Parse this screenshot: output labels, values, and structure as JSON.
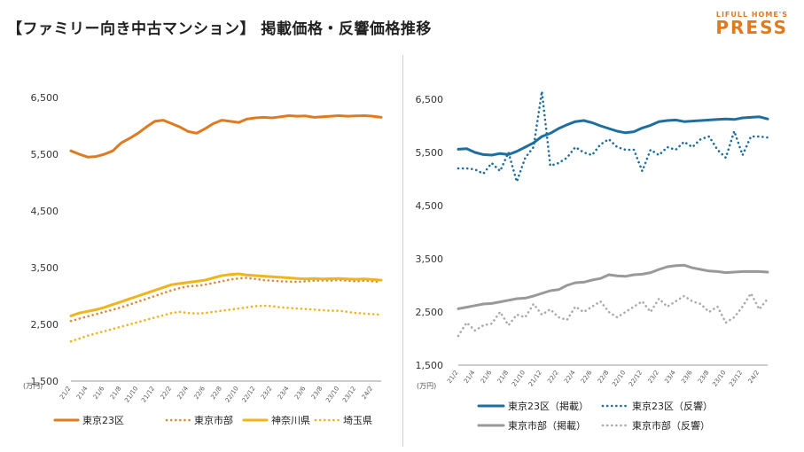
{
  "header": {
    "title": "【ファミリー向き中古マンション】 掲載価格・反響価格推移",
    "logo_small": "LIFULL HOME'S",
    "logo_big": "PRESS"
  },
  "chart_data": [
    {
      "type": "line",
      "title": "",
      "ylabel": "",
      "unit_label": "(万円)",
      "ylim": [
        1500,
        6500
      ],
      "yticks": [
        1500,
        2500,
        3500,
        4500,
        5500,
        6500
      ],
      "ytick_labels": [
        "1,500",
        "2,500",
        "3,500",
        "4,500",
        "5,500",
        "6,500"
      ],
      "categories": [
        "21/2",
        "21/3",
        "21/4",
        "21/5",
        "21/6",
        "21/7",
        "21/8",
        "21/9",
        "21/10",
        "21/11",
        "21/12",
        "22/1",
        "22/2",
        "22/3",
        "22/4",
        "22/5",
        "22/6",
        "22/7",
        "22/8",
        "22/9",
        "22/10",
        "22/11",
        "22/12",
        "23/1",
        "23/2",
        "23/3",
        "23/4",
        "23/5",
        "23/6",
        "23/7",
        "23/8",
        "23/9",
        "23/10",
        "23/11",
        "23/12",
        "24/1",
        "24/2",
        "24/3"
      ],
      "tick_labels": [
        "21/2",
        "21/4",
        "21/6",
        "21/8",
        "21/10",
        "21/12",
        "22/2",
        "22/4",
        "22/6",
        "22/8",
        "22/10",
        "22/12",
        "23/2",
        "23/4",
        "23/6",
        "23/8",
        "23/10",
        "23/12",
        "24/2"
      ],
      "series": [
        {
          "name": "東京23区",
          "color": "#e07a1f",
          "style": "solid",
          "values": [
            5560,
            5500,
            5450,
            5460,
            5500,
            5560,
            5700,
            5780,
            5870,
            5980,
            6080,
            6100,
            6040,
            5980,
            5900,
            5870,
            5950,
            6040,
            6100,
            6080,
            6060,
            6120,
            6140,
            6150,
            6140,
            6160,
            6180,
            6170,
            6175,
            6150,
            6160,
            6170,
            6180,
            6170,
            6175,
            6180,
            6170,
            6150
          ]
        },
        {
          "name": "東京市部",
          "color": "#d98a3d",
          "style": "dot",
          "values": [
            2560,
            2600,
            2640,
            2680,
            2720,
            2760,
            2800,
            2850,
            2900,
            2950,
            3000,
            3050,
            3100,
            3140,
            3170,
            3180,
            3200,
            3230,
            3260,
            3290,
            3310,
            3320,
            3300,
            3280,
            3270,
            3260,
            3255,
            3250,
            3260,
            3270,
            3275,
            3270,
            3280,
            3270,
            3260,
            3270,
            3260,
            3250
          ]
        },
        {
          "name": "神奈川県",
          "color": "#f0b41c",
          "style": "solid",
          "values": [
            2650,
            2700,
            2730,
            2760,
            2800,
            2850,
            2900,
            2950,
            3000,
            3050,
            3100,
            3150,
            3200,
            3220,
            3240,
            3260,
            3280,
            3320,
            3360,
            3380,
            3390,
            3370,
            3360,
            3350,
            3340,
            3330,
            3320,
            3310,
            3300,
            3310,
            3300,
            3305,
            3310,
            3300,
            3295,
            3300,
            3290,
            3280
          ]
        },
        {
          "name": "埼玉県",
          "color": "#f0b41c",
          "style": "dot",
          "values": [
            2200,
            2250,
            2300,
            2340,
            2380,
            2420,
            2460,
            2500,
            2540,
            2580,
            2620,
            2660,
            2700,
            2720,
            2700,
            2690,
            2700,
            2720,
            2740,
            2760,
            2780,
            2800,
            2820,
            2830,
            2820,
            2800,
            2790,
            2780,
            2770,
            2760,
            2750,
            2740,
            2740,
            2720,
            2700,
            2690,
            2680,
            2670
          ]
        }
      ],
      "legend": [
        "東京23区",
        "東京市部",
        "神奈川県",
        "埼玉県"
      ]
    },
    {
      "type": "line",
      "title": "",
      "ylabel": "",
      "unit_label": "(万円)",
      "ylim": [
        1500,
        6500
      ],
      "yticks": [
        1500,
        2500,
        3500,
        4500,
        5500,
        6500
      ],
      "ytick_labels": [
        "1,500",
        "2,500",
        "3,500",
        "4,500",
        "5,500",
        "6,500"
      ],
      "categories": [
        "21/2",
        "21/3",
        "21/4",
        "21/5",
        "21/6",
        "21/7",
        "21/8",
        "21/9",
        "21/10",
        "21/11",
        "21/12",
        "22/1",
        "22/2",
        "22/3",
        "22/4",
        "22/5",
        "22/6",
        "22/7",
        "22/8",
        "22/9",
        "22/10",
        "22/11",
        "22/12",
        "23/1",
        "23/2",
        "23/3",
        "23/4",
        "23/5",
        "23/6",
        "23/7",
        "23/8",
        "23/9",
        "23/10",
        "23/11",
        "23/12",
        "24/1",
        "24/2",
        "24/3"
      ],
      "tick_labels": [
        "21/2",
        "21/4",
        "21/6",
        "21/8",
        "21/10",
        "21/12",
        "22/2",
        "22/4",
        "22/6",
        "22/8",
        "22/10",
        "22/12",
        "23/2",
        "23/4",
        "23/6",
        "23/8",
        "23/10",
        "23/12",
        "24/2"
      ],
      "series": [
        {
          "name": "東京23区（掲載）",
          "color": "#1f6f9e",
          "style": "solid",
          "values": [
            5560,
            5570,
            5500,
            5460,
            5450,
            5480,
            5460,
            5520,
            5600,
            5680,
            5800,
            5860,
            5950,
            6020,
            6080,
            6100,
            6060,
            6000,
            5950,
            5900,
            5870,
            5890,
            5960,
            6010,
            6080,
            6100,
            6110,
            6080,
            6090,
            6100,
            6110,
            6120,
            6130,
            6120,
            6150,
            6160,
            6170,
            6130
          ]
        },
        {
          "name": "東京23区（反響）",
          "color": "#1f6f9e",
          "style": "dot",
          "values": [
            5200,
            5200,
            5180,
            5100,
            5300,
            5150,
            5500,
            4950,
            5400,
            5600,
            6650,
            5250,
            5300,
            5400,
            5600,
            5500,
            5450,
            5650,
            5750,
            5600,
            5550,
            5550,
            5150,
            5550,
            5450,
            5600,
            5550,
            5700,
            5600,
            5750,
            5800,
            5550,
            5400,
            5900,
            5450,
            5800,
            5800,
            5780
          ]
        },
        {
          "name": "東京市部（掲載）",
          "color": "#999999",
          "style": "solid",
          "values": [
            2560,
            2590,
            2620,
            2650,
            2660,
            2690,
            2720,
            2750,
            2760,
            2800,
            2850,
            2900,
            2920,
            3000,
            3050,
            3060,
            3100,
            3130,
            3200,
            3180,
            3170,
            3200,
            3210,
            3240,
            3300,
            3350,
            3370,
            3380,
            3330,
            3300,
            3270,
            3260,
            3240,
            3250,
            3260,
            3260,
            3260,
            3250
          ]
        },
        {
          "name": "東京市部（反響）",
          "color": "#aaaaaa",
          "style": "dot",
          "values": [
            2050,
            2300,
            2150,
            2250,
            2280,
            2500,
            2250,
            2450,
            2400,
            2650,
            2450,
            2550,
            2400,
            2350,
            2600,
            2500,
            2600,
            2700,
            2500,
            2400,
            2500,
            2600,
            2700,
            2500,
            2750,
            2600,
            2700,
            2800,
            2700,
            2650,
            2500,
            2600,
            2300,
            2400,
            2600,
            2850,
            2550,
            2750
          ]
        }
      ],
      "legend": [
        "東京23区（掲載）",
        "東京23区（反響）",
        "東京市部（掲載）",
        "東京市部（反響）"
      ]
    }
  ]
}
